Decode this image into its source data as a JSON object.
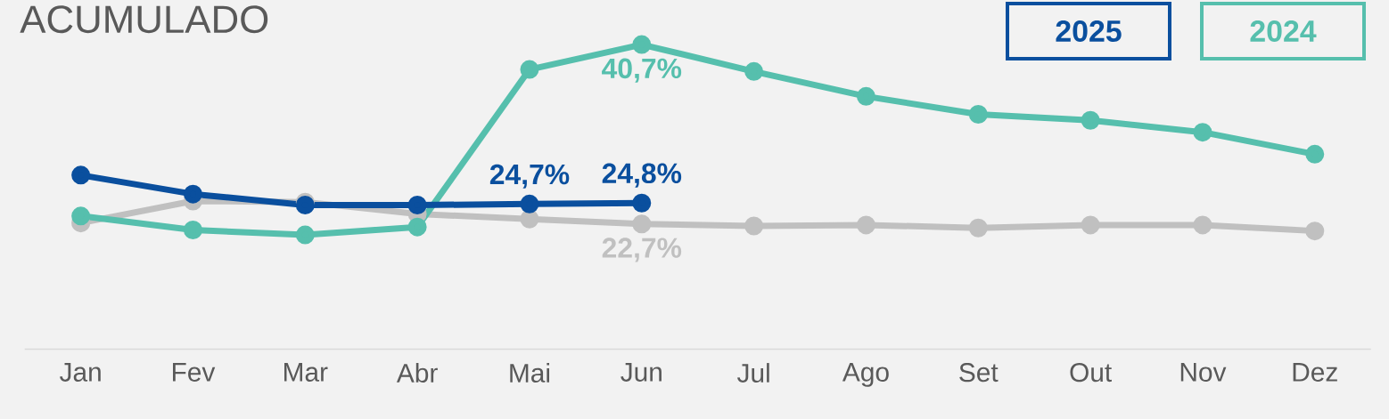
{
  "chart_data": {
    "type": "line",
    "title": "ACUMULADO",
    "categories": [
      "Jan",
      "Fev",
      "Mar",
      "Abr",
      "Mai",
      "Jun",
      "Jul",
      "Ago",
      "Set",
      "Out",
      "Nov",
      "Dez"
    ],
    "series": [
      {
        "name": "2025",
        "color": "#0a4f9e",
        "values": [
          27.6,
          25.7,
          24.6,
          24.6,
          24.7,
          24.8,
          null,
          null,
          null,
          null,
          null,
          null
        ],
        "value_labels": [
          null,
          null,
          null,
          null,
          "24,7%",
          "24,8%",
          null,
          null,
          null,
          null,
          null,
          null
        ]
      },
      {
        "name": "2024",
        "color": "#56bfad",
        "values": [
          23.5,
          22.1,
          21.6,
          22.4,
          38.2,
          40.7,
          38.0,
          35.5,
          33.7,
          33.1,
          31.9,
          29.7
        ],
        "value_labels": [
          null,
          null,
          null,
          null,
          null,
          "40,7%",
          null,
          null,
          null,
          null,
          null,
          null
        ]
      },
      {
        "color": "#c0c0c0",
        "values": [
          22.8,
          25.0,
          24.9,
          23.7,
          23.2,
          22.7,
          22.5,
          22.6,
          22.3,
          22.6,
          22.6,
          22.0
        ],
        "value_labels": [
          null,
          null,
          null,
          null,
          null,
          "22,7%",
          null,
          null,
          null,
          null,
          null,
          null
        ]
      }
    ],
    "marker": "circle",
    "line_style": "solid",
    "legend": "top right"
  }
}
